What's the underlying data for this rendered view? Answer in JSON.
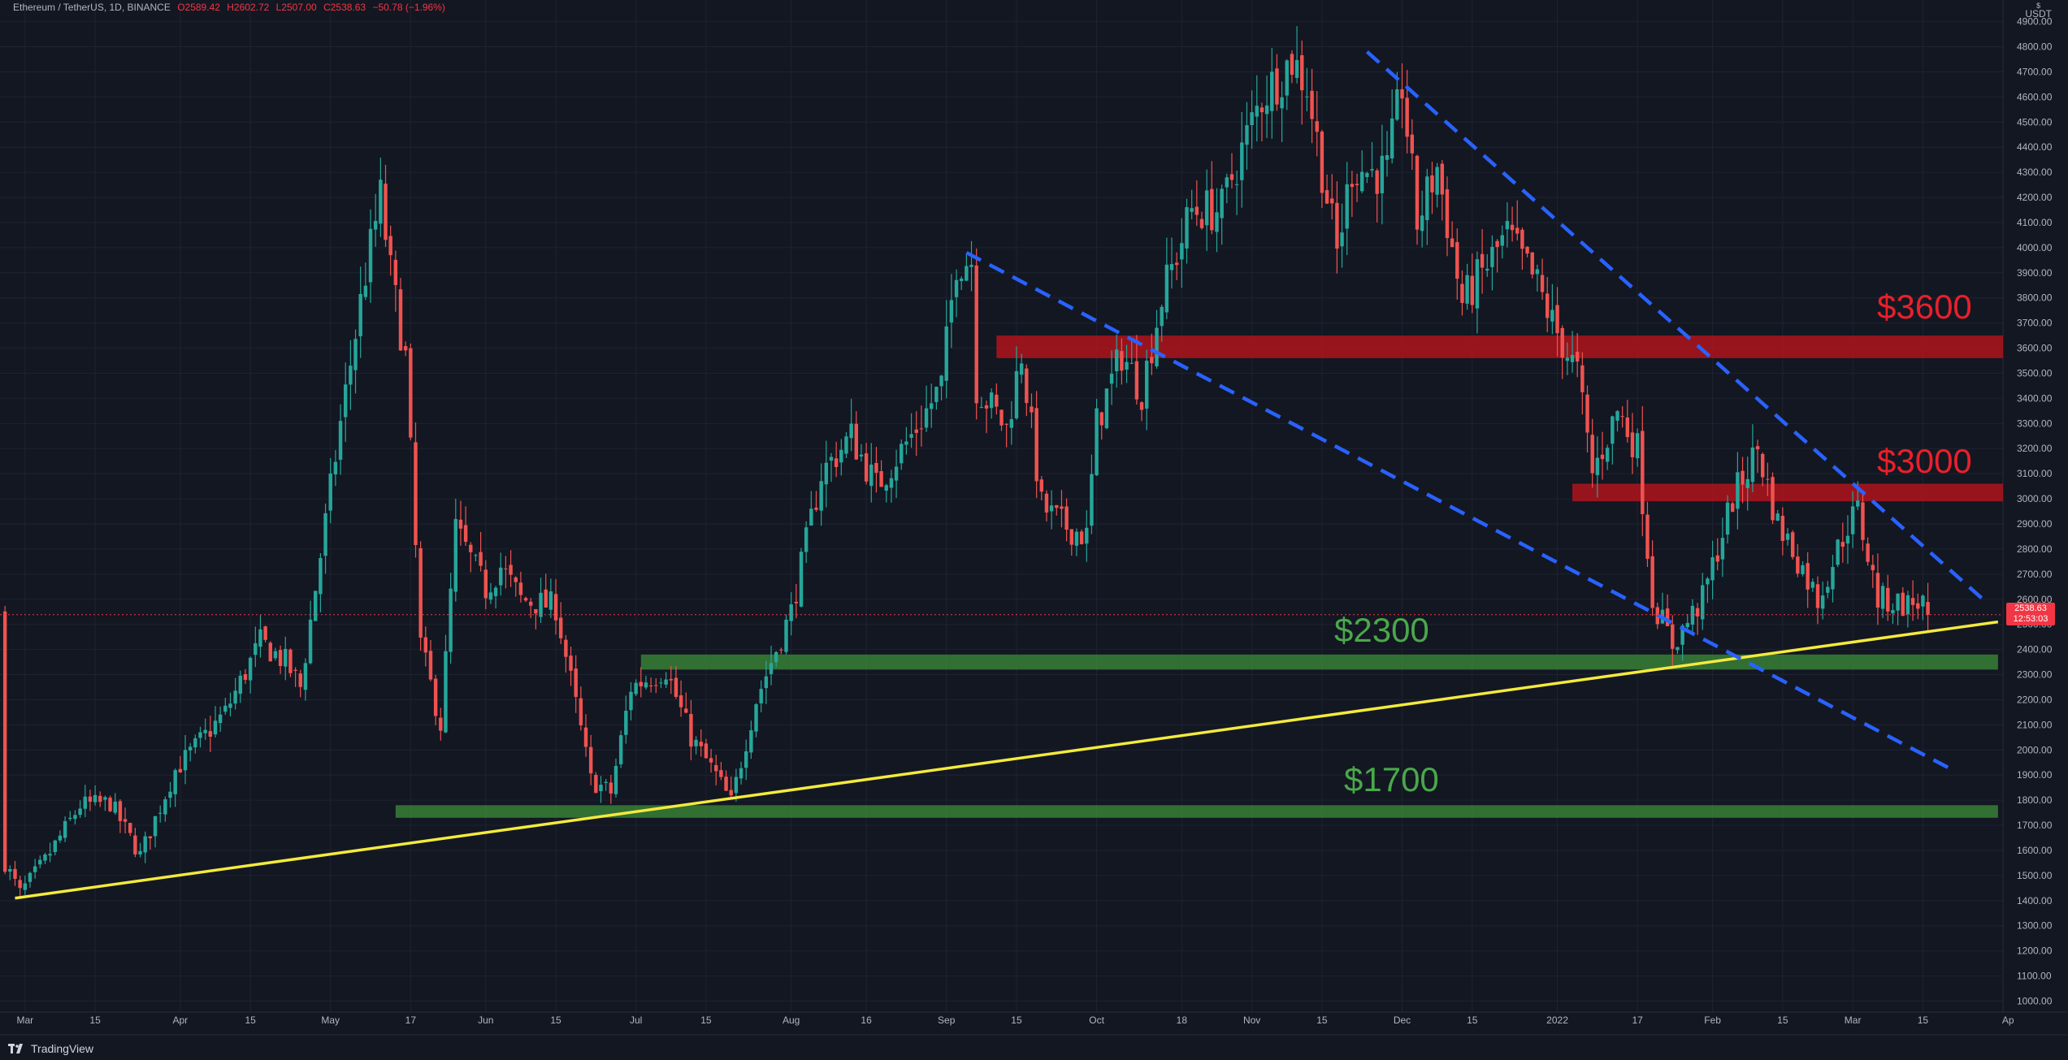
{
  "header": {
    "symbol": "Ethereum / TetherUS, 1D, BINANCE",
    "open": "O2589.42",
    "high": "H2602.72",
    "low": "L2507.00",
    "close": "C2538.63",
    "change": "−50.78 (−1.96%)"
  },
  "currency": {
    "flag": "$",
    "code": "USDT"
  },
  "last_price": {
    "value": "2538.63",
    "countdown": "12:53:03"
  },
  "footer": {
    "logo_text": "TradingView"
  },
  "colors": {
    "up": "#26a69a",
    "down": "#ef5350",
    "background": "#131722",
    "support": "#3e8e3a",
    "resistance": "#b0141c",
    "trendline": "#f4ea3d",
    "channel": "#2962ff"
  },
  "annotations": {
    "r3600": "$3600",
    "r3000": "$3000",
    "s2300": "$2300",
    "s1700": "$1700"
  },
  "chart_data": {
    "type": "candlestick",
    "title": "",
    "ylim": [
      1000,
      4900
    ],
    "y_ticks": [
      "4900.00",
      "4800.00",
      "4700.00",
      "4600.00",
      "4500.00",
      "4400.00",
      "4300.00",
      "4200.00",
      "4100.00",
      "4000.00",
      "3900.00",
      "3800.00",
      "3700.00",
      "3600.00",
      "3500.00",
      "3400.00",
      "3300.00",
      "3200.00",
      "3100.00",
      "3000.00",
      "2900.00",
      "2800.00",
      "2700.00",
      "2600.00",
      "2500.00",
      "2400.00",
      "2300.00",
      "2200.00",
      "2100.00",
      "2000.00",
      "1900.00",
      "1800.00",
      "1700.00",
      "1600.00",
      "1500.00",
      "1400.00",
      "1300.00",
      "1200.00",
      "1100.00",
      "1000.00"
    ],
    "x_range": [
      "2021-02-24",
      "2022-03-31"
    ],
    "x_ticks": [
      {
        "label": "Mar",
        "date": "2021-03-01"
      },
      {
        "label": "15",
        "date": "2021-03-15"
      },
      {
        "label": "Apr",
        "date": "2021-04-01"
      },
      {
        "label": "15",
        "date": "2021-04-15"
      },
      {
        "label": "May",
        "date": "2021-05-01"
      },
      {
        "label": "17",
        "date": "2021-05-17"
      },
      {
        "label": "Jun",
        "date": "2021-06-01"
      },
      {
        "label": "15",
        "date": "2021-06-15"
      },
      {
        "label": "Jul",
        "date": "2021-07-01"
      },
      {
        "label": "15",
        "date": "2021-07-15"
      },
      {
        "label": "Aug",
        "date": "2021-08-01"
      },
      {
        "label": "16",
        "date": "2021-08-16"
      },
      {
        "label": "Sep",
        "date": "2021-09-01"
      },
      {
        "label": "15",
        "date": "2021-09-15"
      },
      {
        "label": "Oct",
        "date": "2021-10-01"
      },
      {
        "label": "18",
        "date": "2021-10-18"
      },
      {
        "label": "Nov",
        "date": "2021-11-01"
      },
      {
        "label": "15",
        "date": "2021-11-15"
      },
      {
        "label": "Dec",
        "date": "2021-12-01"
      },
      {
        "label": "15",
        "date": "2021-12-15"
      },
      {
        "label": "2022",
        "date": "2022-01-01"
      },
      {
        "label": "17",
        "date": "2022-01-17"
      },
      {
        "label": "Feb",
        "date": "2022-02-01"
      },
      {
        "label": "15",
        "date": "2022-02-15"
      },
      {
        "label": "Mar",
        "date": "2022-03-01"
      },
      {
        "label": "15",
        "date": "2022-03-15"
      },
      {
        "label": "Ap",
        "date": "2022-04-01"
      }
    ],
    "keypoints": [
      {
        "date": "2021-02-25",
        "close": 1550
      },
      {
        "date": "2021-02-28",
        "close": 1430
      },
      {
        "date": "2021-03-05",
        "close": 1560
      },
      {
        "date": "2021-03-12",
        "close": 1780
      },
      {
        "date": "2021-03-18",
        "close": 1790
      },
      {
        "date": "2021-03-24",
        "close": 1580
      },
      {
        "date": "2021-03-31",
        "close": 1920
      },
      {
        "date": "2021-04-10",
        "close": 2150
      },
      {
        "date": "2021-04-17",
        "close": 2430
      },
      {
        "date": "2021-04-22",
        "close": 2350
      },
      {
        "date": "2021-04-25",
        "close": 2250
      },
      {
        "date": "2021-05-03",
        "close": 3300
      },
      {
        "date": "2021-05-08",
        "close": 3900
      },
      {
        "date": "2021-05-11",
        "close": 4200
      },
      {
        "date": "2021-05-13",
        "close": 3900
      },
      {
        "date": "2021-05-16",
        "close": 3560
      },
      {
        "date": "2021-05-19",
        "close": 2420
      },
      {
        "date": "2021-05-23",
        "close": 2100
      },
      {
        "date": "2021-05-26",
        "close": 2880
      },
      {
        "date": "2021-06-01",
        "close": 2640
      },
      {
        "date": "2021-06-04",
        "close": 2730
      },
      {
        "date": "2021-06-08",
        "close": 2600
      },
      {
        "date": "2021-06-15",
        "close": 2570
      },
      {
        "date": "2021-06-19",
        "close": 2180
      },
      {
        "date": "2021-06-22",
        "close": 1880
      },
      {
        "date": "2021-06-26",
        "close": 1830
      },
      {
        "date": "2021-06-30",
        "close": 2250
      },
      {
        "date": "2021-07-07",
        "close": 2320
      },
      {
        "date": "2021-07-12",
        "close": 2050
      },
      {
        "date": "2021-07-17",
        "close": 1900
      },
      {
        "date": "2021-07-20",
        "close": 1790
      },
      {
        "date": "2021-07-25",
        "close": 2200
      },
      {
        "date": "2021-08-01",
        "close": 2550
      },
      {
        "date": "2021-08-07",
        "close": 3100
      },
      {
        "date": "2021-08-13",
        "close": 3250
      },
      {
        "date": "2021-08-18",
        "close": 3050
      },
      {
        "date": "2021-08-25",
        "close": 3250
      },
      {
        "date": "2021-08-31",
        "close": 3450
      },
      {
        "date": "2021-09-03",
        "close": 3950
      },
      {
        "date": "2021-09-06",
        "close": 3950
      },
      {
        "date": "2021-09-07",
        "close": 3450
      },
      {
        "date": "2021-09-13",
        "close": 3280
      },
      {
        "date": "2021-09-16",
        "close": 3580
      },
      {
        "date": "2021-09-20",
        "close": 2970
      },
      {
        "date": "2021-09-24",
        "close": 2900
      },
      {
        "date": "2021-09-29",
        "close": 2850
      },
      {
        "date": "2021-10-01",
        "close": 3300
      },
      {
        "date": "2021-10-06",
        "close": 3580
      },
      {
        "date": "2021-10-10",
        "close": 3430
      },
      {
        "date": "2021-10-14",
        "close": 3800
      },
      {
        "date": "2021-10-20",
        "close": 4150
      },
      {
        "date": "2021-10-26",
        "close": 4150
      },
      {
        "date": "2021-10-28",
        "close": 4280
      },
      {
        "date": "2021-11-03",
        "close": 4600
      },
      {
        "date": "2021-11-09",
        "close": 4750
      },
      {
        "date": "2021-11-12",
        "close": 4650
      },
      {
        "date": "2021-11-18",
        "close": 3980
      },
      {
        "date": "2021-11-21",
        "close": 4320
      },
      {
        "date": "2021-11-25",
        "close": 4300
      },
      {
        "date": "2021-11-28",
        "close": 4300
      },
      {
        "date": "2021-12-01",
        "close": 4650
      },
      {
        "date": "2021-12-04",
        "close": 4100
      },
      {
        "date": "2021-12-08",
        "close": 4320
      },
      {
        "date": "2021-12-13",
        "close": 3780
      },
      {
        "date": "2021-12-17",
        "close": 3900
      },
      {
        "date": "2021-12-22",
        "close": 4050
      },
      {
        "date": "2021-12-28",
        "close": 3850
      },
      {
        "date": "2021-12-31",
        "close": 3700
      },
      {
        "date": "2022-01-05",
        "close": 3500
      },
      {
        "date": "2022-01-08",
        "close": 3100
      },
      {
        "date": "2022-01-13",
        "close": 3350
      },
      {
        "date": "2022-01-17",
        "close": 3200
      },
      {
        "date": "2022-01-20",
        "close": 2600
      },
      {
        "date": "2022-01-24",
        "close": 2420
      },
      {
        "date": "2022-01-30",
        "close": 2600
      },
      {
        "date": "2022-02-05",
        "close": 3000
      },
      {
        "date": "2022-02-10",
        "close": 3200
      },
      {
        "date": "2022-02-14",
        "close": 2900
      },
      {
        "date": "2022-02-17",
        "close": 2800
      },
      {
        "date": "2022-02-22",
        "close": 2600
      },
      {
        "date": "2022-02-28",
        "close": 2900
      },
      {
        "date": "2022-03-02",
        "close": 2950
      },
      {
        "date": "2022-03-06",
        "close": 2600
      },
      {
        "date": "2022-03-12",
        "close": 2580
      },
      {
        "date": "2022-03-15",
        "close": 2590
      },
      {
        "date": "2022-03-16",
        "close": 2538.63
      }
    ],
    "zones": [
      {
        "label": "$3600",
        "kind": "resistance",
        "from": "2021-09-11",
        "to": "2022-03-31",
        "low": 3560,
        "high": 3650
      },
      {
        "label": "$3000",
        "kind": "resistance",
        "from": "2022-01-04",
        "to": "2022-03-31",
        "low": 2990,
        "high": 3060
      },
      {
        "label": "$2300",
        "kind": "support",
        "from": "2021-07-02",
        "to": "2022-03-30",
        "low": 2320,
        "high": 2380
      },
      {
        "label": "$1700",
        "kind": "support",
        "from": "2021-05-14",
        "to": "2022-03-30",
        "low": 1730,
        "high": 1780
      }
    ],
    "lines": [
      {
        "kind": "trendline",
        "style": "solid",
        "from": {
          "date": "2021-02-27",
          "price": 1410
        },
        "to": {
          "date": "2022-03-30",
          "price": 2510
        }
      },
      {
        "kind": "channel",
        "style": "dashed",
        "from": {
          "date": "2021-11-24",
          "price": 4780
        },
        "to": {
          "date": "2022-03-27",
          "price": 2600
        }
      },
      {
        "kind": "channel",
        "style": "dashed",
        "from": {
          "date": "2021-09-05",
          "price": 3980
        },
        "to": {
          "date": "2022-03-21",
          "price": 1920
        }
      }
    ]
  }
}
